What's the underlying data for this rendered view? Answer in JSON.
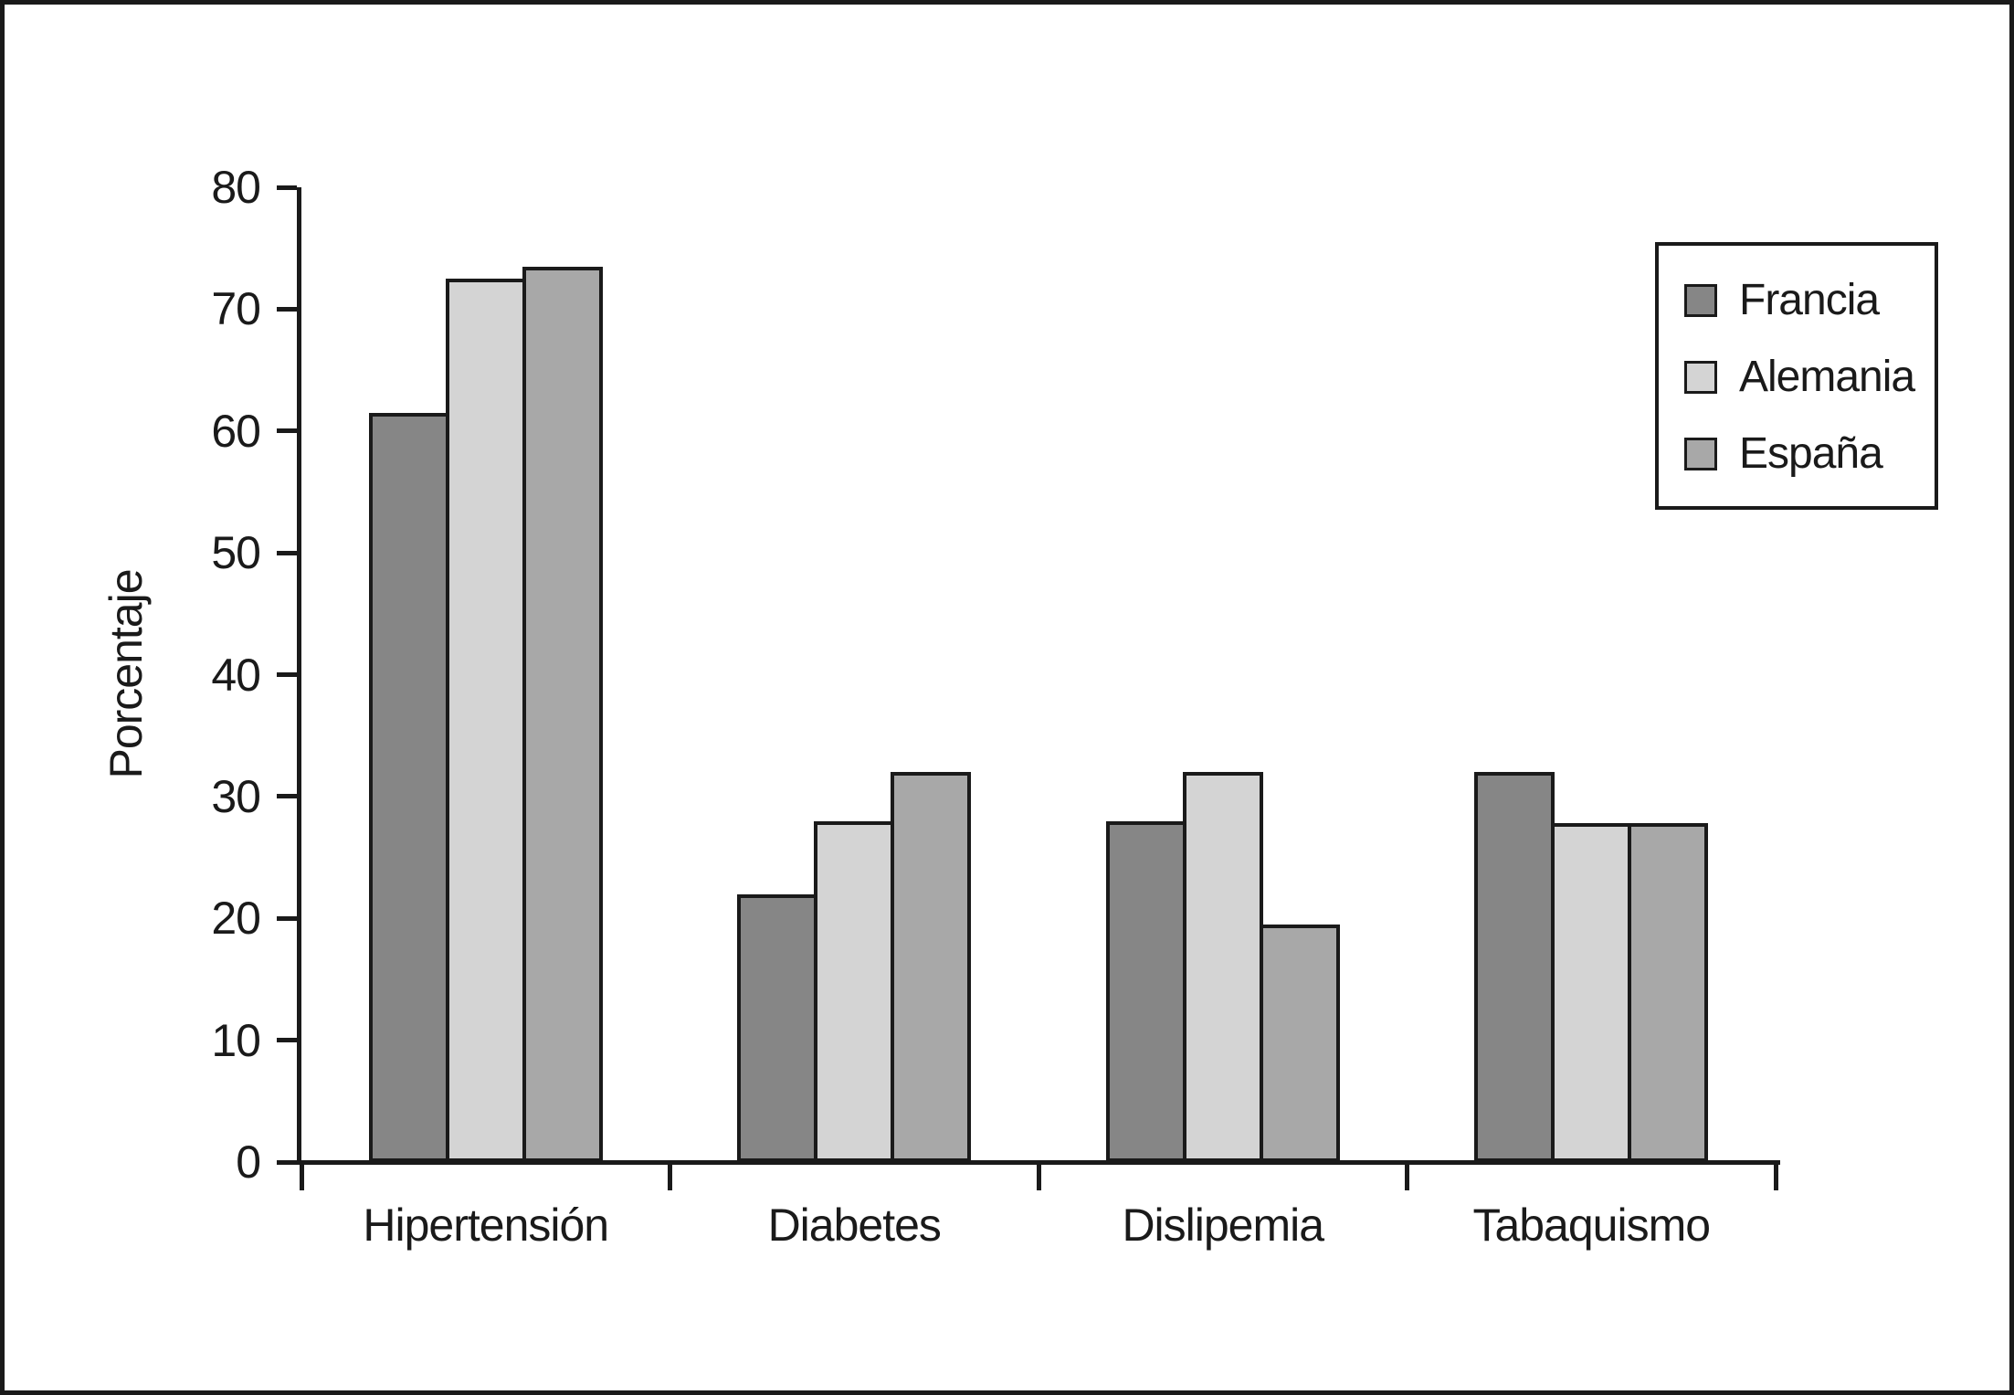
{
  "figure": {
    "background_color": "#ffffff",
    "frame_color": "#1a1a1a",
    "text_color": "#1a1a1a"
  },
  "chart_data": {
    "type": "bar",
    "title": "",
    "xlabel": "",
    "ylabel": "Porcentaje",
    "ylim": [
      0,
      80
    ],
    "ytick_interval": 10,
    "yticks": [
      0,
      10,
      20,
      30,
      40,
      50,
      60,
      70,
      80
    ],
    "grid": false,
    "categories": [
      "Hipertensión",
      "Diabetes",
      "Dislipemia",
      "Tabaquismo"
    ],
    "series": [
      {
        "name": "Francia",
        "color": "#868686",
        "values": [
          61.5,
          22,
          28,
          32
        ]
      },
      {
        "name": "Alemania",
        "color": "#d4d4d4",
        "values": [
          72.5,
          28,
          32,
          27.8
        ]
      },
      {
        "name": "España",
        "color": "#a8a8a8",
        "values": [
          73.5,
          32,
          19.5,
          27.8
        ]
      }
    ],
    "legend": {
      "position": "upper-right",
      "items": [
        "Francia",
        "Alemania",
        "España"
      ]
    }
  }
}
